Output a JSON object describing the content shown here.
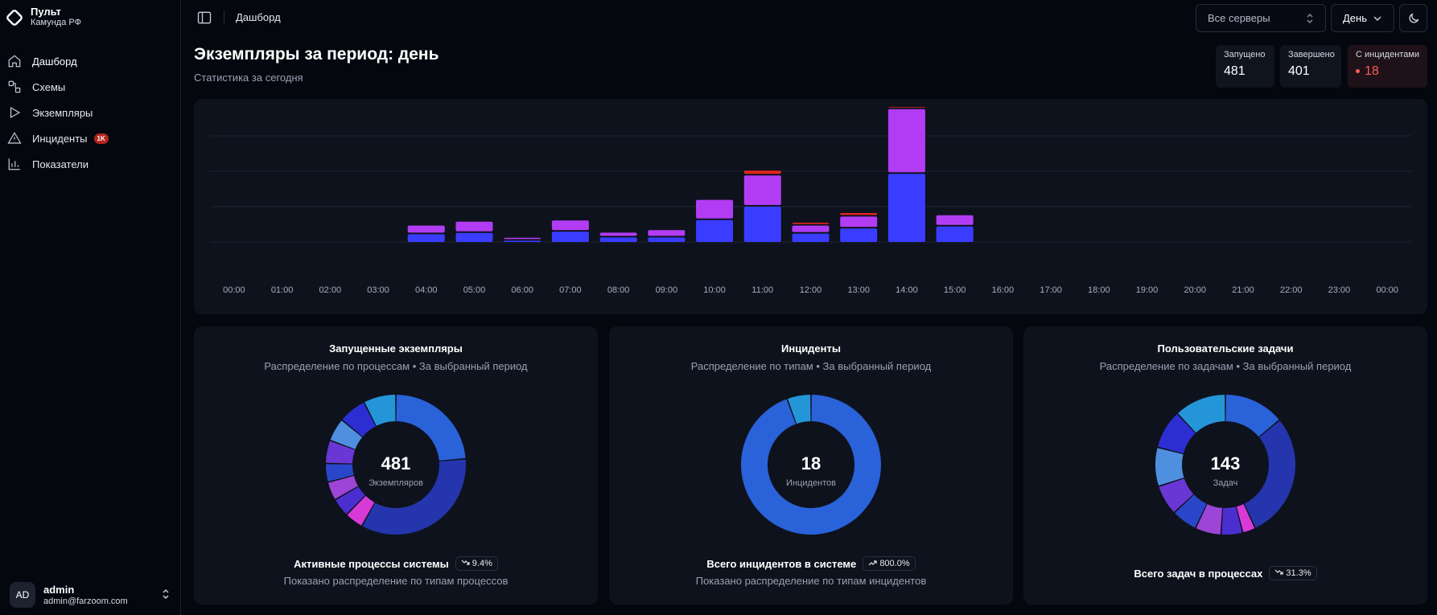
{
  "brand": {
    "title": "Пульт",
    "subtitle": "Камунда РФ"
  },
  "nav": [
    {
      "label": "Дашборд",
      "icon": "home-icon"
    },
    {
      "label": "Схемы",
      "icon": "schemas-icon"
    },
    {
      "label": "Экземпляры",
      "icon": "play-icon"
    },
    {
      "label": "Инциденты",
      "icon": "warning-icon",
      "badge": "1K"
    },
    {
      "label": "Показатели",
      "icon": "bar-chart-icon"
    }
  ],
  "user": {
    "initials": "AD",
    "name": "admin",
    "email": "admin@farzoom.com"
  },
  "topbar": {
    "breadcrumb": "Дашборд",
    "server_select": "Все серверы",
    "period_select": "День"
  },
  "header": {
    "title": "Экземпляры за период: день",
    "subtitle": "Статистика за сегодня"
  },
  "stats": {
    "started": {
      "label": "Запущено",
      "value": "481"
    },
    "finished": {
      "label": "Завершено",
      "value": "401"
    },
    "incidents": {
      "label": "С инцидентами",
      "value": "18"
    }
  },
  "colors": {
    "blue": "#3a3dff",
    "purple": "#b23cf4",
    "red": "#e5241f",
    "donut_blue": "#2a62d9"
  },
  "chart_data": {
    "type": "bar",
    "stacked": true,
    "categories": [
      "00:00",
      "01:00",
      "02:00",
      "03:00",
      "04:00",
      "05:00",
      "06:00",
      "07:00",
      "08:00",
      "09:00",
      "10:00",
      "11:00",
      "12:00",
      "13:00",
      "14:00",
      "15:00",
      "16:00",
      "17:00",
      "18:00",
      "19:00",
      "20:00",
      "21:00",
      "22:00",
      "23:00",
      "00:00"
    ],
    "series": [
      {
        "color": "#3a3dff",
        "values": [
          0,
          0,
          0,
          0,
          12,
          14,
          2,
          16,
          7,
          7,
          34,
          55,
          13,
          21,
          106,
          24,
          0,
          0,
          0,
          0,
          0,
          0,
          0,
          0,
          0
        ]
      },
      {
        "color": "#b23cf4",
        "values": [
          0,
          0,
          0,
          0,
          11,
          15,
          2,
          15,
          5,
          9,
          29,
          46,
          10,
          16,
          98,
          15,
          0,
          0,
          0,
          0,
          0,
          0,
          0,
          0,
          0
        ]
      },
      {
        "color": "#e5241f",
        "values": [
          0,
          0,
          0,
          0,
          0,
          0,
          0,
          0,
          0,
          0,
          0,
          5,
          2,
          3,
          1,
          0,
          0,
          0,
          0,
          0,
          0,
          0,
          0,
          0,
          0
        ]
      }
    ],
    "grid": true
  },
  "cards": [
    {
      "title": "Запущенные экземпляры",
      "subtitle": "Распределение по процессам • За выбранный период",
      "center_value": "481",
      "center_label": "Экземпляров",
      "footer_label": "Активные процессы системы",
      "footer_pill": "9.4%",
      "footer_trend": "down",
      "footer_note": "Показано распределение по типам процессов",
      "donut": [
        {
          "value": 22,
          "color": "#2a62d9"
        },
        {
          "value": 32,
          "color": "#2435ad"
        },
        {
          "value": 4,
          "color": "#d83ad8"
        },
        {
          "value": 4,
          "color": "#4a2ed0"
        },
        {
          "value": 4,
          "color": "#9c45d6"
        },
        {
          "value": 4,
          "color": "#2a46c8"
        },
        {
          "value": 5,
          "color": "#6a37d4"
        },
        {
          "value": 5,
          "color": "#4f8fe0"
        },
        {
          "value": 6,
          "color": "#2c2ed4"
        },
        {
          "value": 7,
          "color": "#2496d8"
        }
      ]
    },
    {
      "title": "Инциденты",
      "subtitle": "Распределение по типам • За выбранный период",
      "center_value": "18",
      "center_label": "Инцидентов",
      "footer_label": "Всего инцидентов в системе",
      "footer_pill": "800.0%",
      "footer_trend": "up",
      "footer_note": "Показано распределение по типам инцидентов",
      "donut": [
        {
          "value": 17,
          "color": "#2a62d9"
        },
        {
          "value": 1,
          "color": "#2496d8"
        }
      ]
    },
    {
      "title": "Пользовательские задачи",
      "subtitle": "Распределение по задачам • За выбранный период",
      "center_value": "143",
      "center_label": "Задач",
      "footer_label": "Всего задач в процессах",
      "footer_pill": "31.3%",
      "footer_trend": "down",
      "footer_note": "",
      "donut": [
        {
          "value": 14,
          "color": "#2a62d9"
        },
        {
          "value": 29,
          "color": "#2435ad"
        },
        {
          "value": 3,
          "color": "#d83ad8"
        },
        {
          "value": 5,
          "color": "#4a2ed0"
        },
        {
          "value": 6,
          "color": "#9c45d6"
        },
        {
          "value": 6,
          "color": "#2a46c8"
        },
        {
          "value": 7,
          "color": "#6a37d4"
        },
        {
          "value": 9,
          "color": "#4f8fe0"
        },
        {
          "value": 9,
          "color": "#2c2ed4"
        },
        {
          "value": 12,
          "color": "#2496d8"
        }
      ]
    }
  ]
}
